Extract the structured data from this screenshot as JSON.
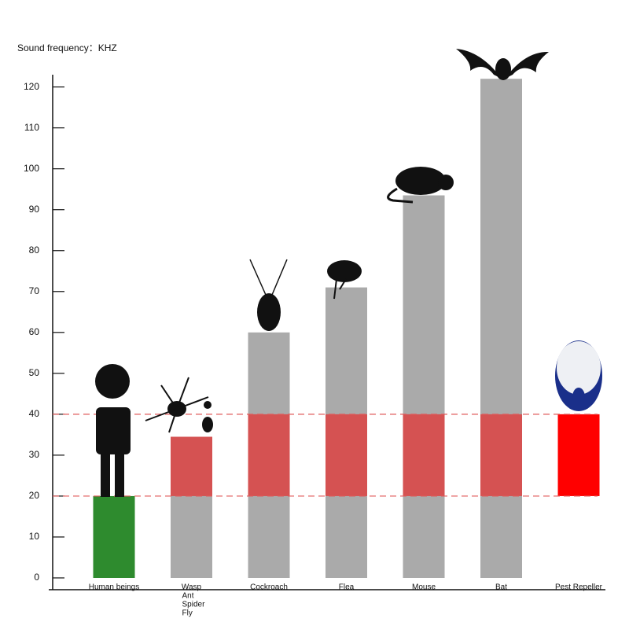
{
  "chart_data": {
    "type": "bar",
    "y_label": "Sound frequency：KHZ",
    "categories": [
      [
        "Human beings"
      ],
      [
        "Wasp",
        "Ant",
        "Spider",
        "Fly"
      ],
      [
        "Cockroach"
      ],
      [
        "Flea"
      ],
      [
        "Mouse"
      ],
      [
        "Bat"
      ],
      [
        "Pest Repeller"
      ]
    ],
    "values": [
      20,
      34.5,
      60,
      71,
      93.5,
      122,
      null
    ],
    "colors": [
      "#2e8b2e",
      "#aaaaaa",
      "#aaaaaa",
      "#aaaaaa",
      "#aaaaaa",
      "#aaaaaa",
      "#ff0000"
    ],
    "repeller_range": [
      20,
      40
    ],
    "overlap_color": "#e03c3c",
    "ylim": [
      0,
      123
    ],
    "yticks": [
      0,
      10,
      20,
      30,
      40,
      50,
      60,
      70,
      80,
      90,
      100,
      110,
      120
    ]
  }
}
